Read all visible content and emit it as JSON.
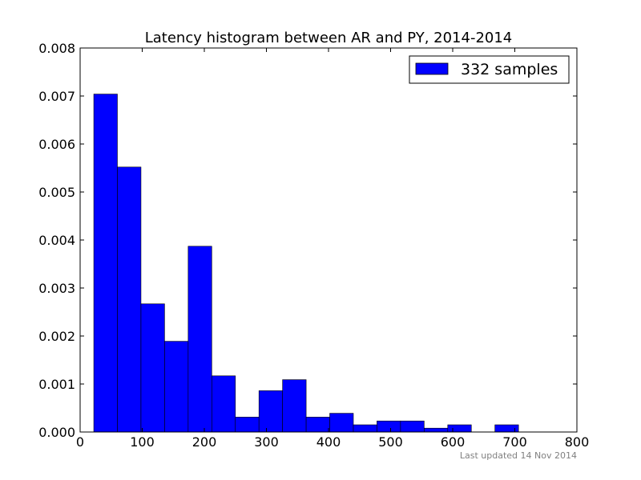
{
  "chart_data": {
    "type": "bar",
    "title": "Latency histogram between AR and PY, 2014-2014",
    "xlabel": "",
    "ylabel": "",
    "xlim": [
      0,
      800
    ],
    "ylim": [
      0,
      0.008
    ],
    "x_ticks": [
      0,
      100,
      200,
      300,
      400,
      500,
      600,
      700,
      800
    ],
    "y_ticks": [
      0.0,
      0.001,
      0.002,
      0.003,
      0.004,
      0.005,
      0.006,
      0.007,
      0.008
    ],
    "y_tick_labels": [
      "0.000",
      "0.001",
      "0.002",
      "0.003",
      "0.004",
      "0.005",
      "0.006",
      "0.007",
      "0.008"
    ],
    "grid": false,
    "legend_position": "top-right",
    "series": [
      {
        "name": "332 samples",
        "color": "#0000ff",
        "bins": [
          {
            "start": 22,
            "end": 60,
            "value": 0.00704
          },
          {
            "start": 60,
            "end": 98,
            "value": 0.00552
          },
          {
            "start": 98,
            "end": 136,
            "value": 0.00267
          },
          {
            "start": 136,
            "end": 174,
            "value": 0.00189
          },
          {
            "start": 174,
            "end": 212,
            "value": 0.00387
          },
          {
            "start": 212,
            "end": 250,
            "value": 0.00117
          },
          {
            "start": 250,
            "end": 288,
            "value": 0.00031
          },
          {
            "start": 288,
            "end": 326,
            "value": 0.00086
          },
          {
            "start": 326,
            "end": 364,
            "value": 0.00109
          },
          {
            "start": 364,
            "end": 402,
            "value": 0.00031
          },
          {
            "start": 402,
            "end": 440,
            "value": 0.00039
          },
          {
            "start": 440,
            "end": 478,
            "value": 0.00015
          },
          {
            "start": 478,
            "end": 516,
            "value": 0.00023
          },
          {
            "start": 516,
            "end": 554,
            "value": 0.00023
          },
          {
            "start": 554,
            "end": 592,
            "value": 8e-05
          },
          {
            "start": 592,
            "end": 630,
            "value": 0.00015
          },
          {
            "start": 630,
            "end": 668,
            "value": 0.0
          },
          {
            "start": 668,
            "end": 706,
            "value": 0.00015
          }
        ]
      }
    ]
  },
  "footer": {
    "updated": "Last updated 14 Nov 2014"
  }
}
